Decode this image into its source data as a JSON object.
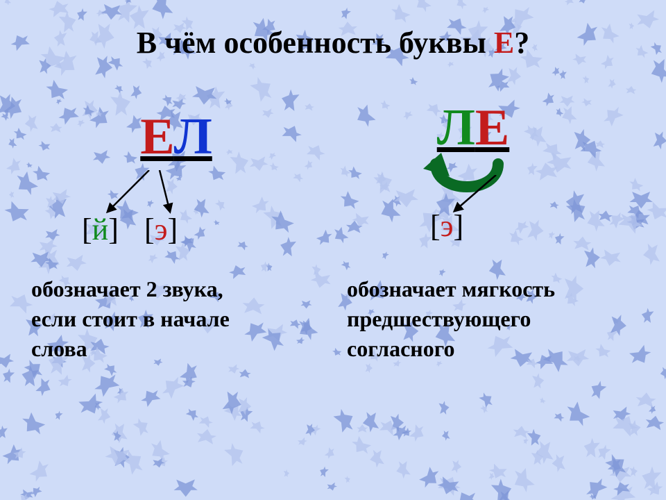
{
  "title": {
    "prefix": "В чём особенность буквы ",
    "accent_letter": "Е",
    "suffix": "?"
  },
  "left": {
    "word": {
      "letter1": "Е",
      "letter2": "Л"
    },
    "phon1": {
      "open": "[",
      "sound": "й",
      "close": "]"
    },
    "phon2": {
      "open": "[",
      "sound": "э",
      "close": "]"
    },
    "desc_line1": "обозначает 2 звука,",
    "desc_line2": "если стоит в начале",
    "desc_line3": "слова"
  },
  "right": {
    "word": {
      "letter1": "Л",
      "letter2": "Е"
    },
    "phon": {
      "open": "[",
      "sound": "э",
      "close": "]"
    },
    "desc_line1": "обозначает мягкость",
    "desc_line2": "предшествующего",
    "desc_line3": "согласного"
  },
  "colors": {
    "background": "#cfdcf8",
    "star_a": "rgba(126,150,215,0.75)",
    "star_b": "rgba(180,196,238,0.75)",
    "red": "#c31c1c",
    "blue": "#1034d1",
    "green": "#118a1e",
    "dark_green": "#0a6a24",
    "black": "#000000"
  }
}
